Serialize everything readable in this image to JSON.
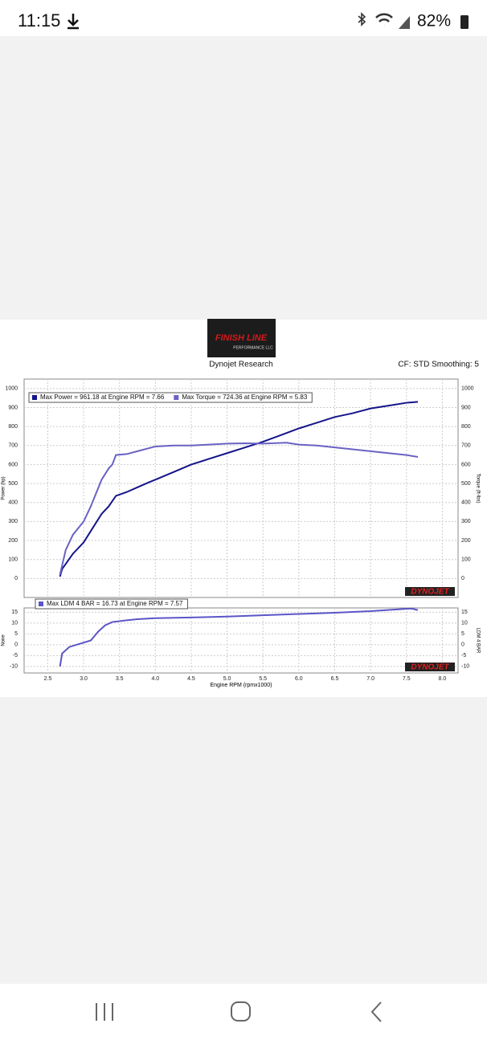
{
  "status_bar": {
    "time": "11:15",
    "battery": "82%"
  },
  "header": {
    "logo_title": "FINISH LINE",
    "logo_subtitle": "PERFORMANCE LLC",
    "source": "Dynojet Research",
    "settings": "CF: STD Smoothing: 5"
  },
  "chart_data": [
    {
      "type": "line",
      "brand": "DYNOJET",
      "y_label": "Power (hp)",
      "y2_label": "Torque (ft-lbs)",
      "xlim": [
        2.17,
        8.22
      ],
      "ylim": [
        -100,
        1050
      ],
      "yticks": [
        0,
        100,
        200,
        300,
        400,
        500,
        600,
        700,
        800,
        900,
        1000
      ],
      "y2lim": [
        -100,
        1050
      ],
      "y2ticks": [
        0,
        100,
        200,
        300,
        400,
        500,
        600,
        700,
        800,
        900,
        1000
      ],
      "grid": true,
      "series": [
        {
          "name": "Max Power = 961.18 at Engine RPM = 7.66",
          "color": "#14148a",
          "x": [
            2.67,
            2.7,
            2.85,
            3.0,
            3.1,
            3.25,
            3.35,
            3.45,
            3.6,
            3.75,
            3.9,
            4.0,
            4.25,
            4.5,
            4.75,
            5.0,
            5.25,
            5.5,
            5.75,
            6.0,
            6.25,
            6.5,
            6.75,
            7.0,
            7.25,
            7.5,
            7.66
          ],
          "values": [
            10,
            50,
            130,
            190,
            250,
            340,
            380,
            435,
            455,
            480,
            505,
            520,
            560,
            600,
            630,
            660,
            690,
            720,
            755,
            790,
            820,
            850,
            870,
            895,
            910,
            925,
            930
          ]
        },
        {
          "name": "Max Torque = 724.36 at Engine RPM = 5.83",
          "color": "#6a62c4",
          "axis": "y2",
          "x": [
            2.67,
            2.75,
            2.85,
            3.0,
            3.1,
            3.25,
            3.35,
            3.4,
            3.45,
            3.6,
            3.75,
            4.0,
            4.25,
            4.5,
            4.75,
            5.0,
            5.25,
            5.5,
            5.83,
            6.0,
            6.25,
            6.5,
            6.75,
            7.0,
            7.25,
            7.5,
            7.66
          ],
          "values": [
            20,
            150,
            230,
            300,
            380,
            520,
            580,
            600,
            650,
            655,
            670,
            695,
            700,
            700,
            705,
            710,
            712,
            710,
            715,
            705,
            700,
            690,
            680,
            670,
            660,
            650,
            640
          ]
        }
      ]
    },
    {
      "type": "line",
      "brand": "DYNOJET",
      "y_label": "None",
      "y2_label": "LDM 4 BAR",
      "x_label": "Engine RPM (rpmx1000)",
      "xlim": [
        2.17,
        8.22
      ],
      "ylim": [
        -13,
        17
      ],
      "yticks": [
        -10,
        -5,
        0,
        5,
        10,
        15
      ],
      "y2ticks": [
        -10,
        -5,
        0,
        5,
        10,
        15
      ],
      "y2lim": [
        -13,
        17
      ],
      "xticks": [
        2.5,
        {
          "value": 3,
          "label": "3.0"
        },
        3.5,
        {
          "value": 4,
          "label": "4.0"
        },
        4.5,
        {
          "value": 5,
          "label": "5.0"
        },
        5.5,
        {
          "value": 6,
          "label": "6.0"
        },
        6.5,
        {
          "value": 7,
          "label": "7.0"
        },
        7.5,
        {
          "value": 8,
          "label": "8.0"
        }
      ],
      "grid": true,
      "series": [
        {
          "name": "Max LDM 4 BAR = 16.73 at Engine RPM = 7.57",
          "color": "#5b55c8",
          "x": [
            2.67,
            2.7,
            2.8,
            3.0,
            3.1,
            3.2,
            3.3,
            3.4,
            3.6,
            3.75,
            4.0,
            4.5,
            5.0,
            5.5,
            6.0,
            6.5,
            7.0,
            7.57,
            7.66
          ],
          "values": [
            -10,
            -4,
            -1,
            1,
            2,
            6,
            9,
            10.5,
            11.3,
            11.8,
            12.3,
            12.6,
            13,
            13.6,
            14.2,
            14.8,
            15.5,
            16.73,
            16
          ]
        }
      ]
    }
  ]
}
